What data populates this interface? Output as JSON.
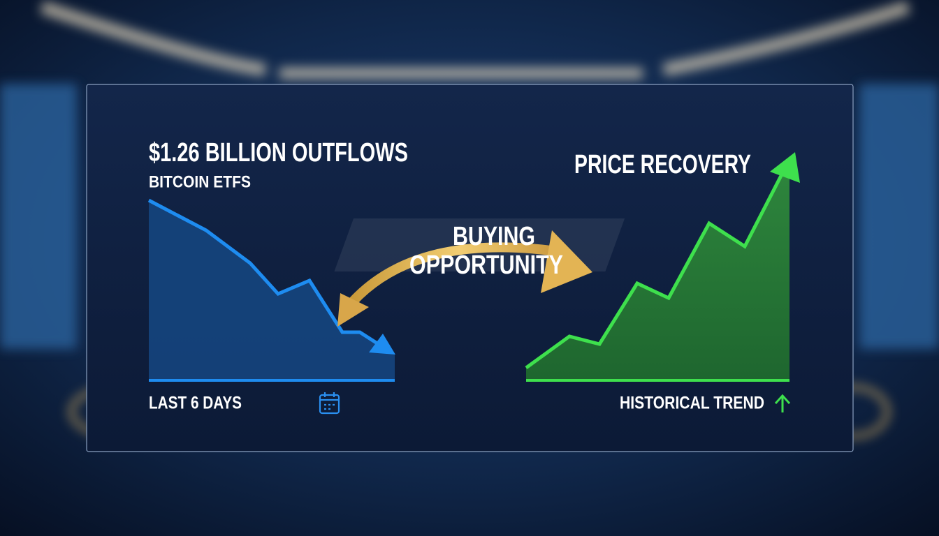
{
  "headline": {
    "title": "$1.26 BILLION OUTFLOWS",
    "subtitle": "BITCOIN ETFS"
  },
  "left_chart": {
    "caption": "LAST 6 DAYS"
  },
  "center": {
    "lines": [
      "BUYING",
      "OPPORTUNITY"
    ]
  },
  "right_chart": {
    "title": "PRICE RECOVERY",
    "caption": "HISTORICAL TREND"
  }
}
